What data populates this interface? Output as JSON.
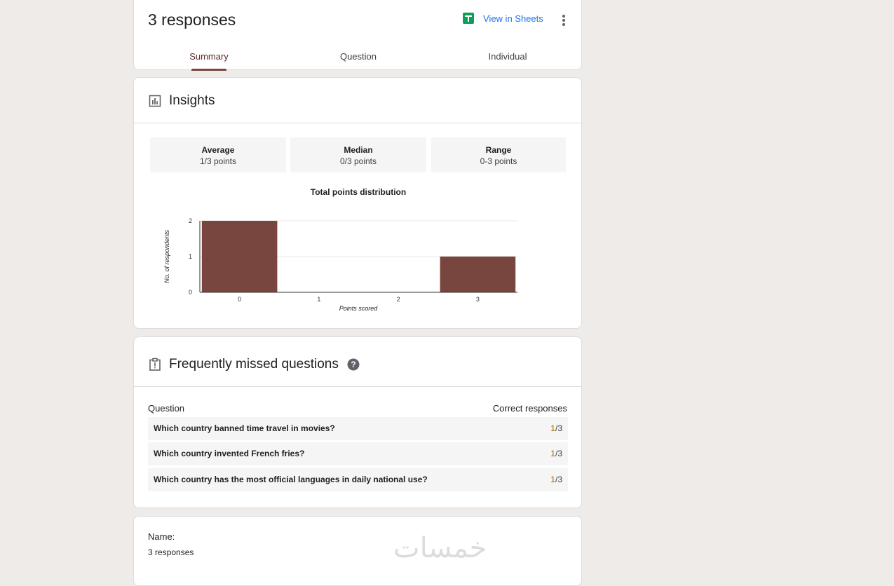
{
  "header": {
    "title": "3 responses",
    "sheets_label": "View in Sheets",
    "sheets_icon": "sheets-icon",
    "more_icon": "more-vert-icon",
    "tabs": [
      {
        "label": "Summary",
        "active": true
      },
      {
        "label": "Question",
        "active": false
      },
      {
        "label": "Individual",
        "active": false
      }
    ]
  },
  "insights": {
    "title": "Insights",
    "icon": "insights-chart-icon",
    "stats": [
      {
        "label": "Average",
        "value": "1/3 points"
      },
      {
        "label": "Median",
        "value": "0/3 points"
      },
      {
        "label": "Range",
        "value": "0-3 points"
      }
    ]
  },
  "chart_data": {
    "type": "bar",
    "title": "Total points distribution",
    "xlabel": "Points scored",
    "ylabel": "No. of respondents",
    "categories": [
      "0",
      "1",
      "2",
      "3"
    ],
    "values": [
      2,
      0,
      0,
      1
    ],
    "ylim": [
      0,
      2
    ],
    "yticks": [
      "0",
      "1",
      "2"
    ],
    "grid": true,
    "bar_color": "#79453f"
  },
  "missed": {
    "title": "Frequently missed questions",
    "icon": "clipboard-alert-icon",
    "help_icon": "help-icon",
    "col_question": "Question",
    "col_correct": "Correct responses",
    "rows": [
      {
        "question": "Which country banned time travel in movies?",
        "correct": "1",
        "total": "/3"
      },
      {
        "question": "Which country invented French fries?",
        "correct": "1",
        "total": "/3"
      },
      {
        "question": "Which country has the most official languages in daily national use?",
        "correct": "1",
        "total": "/3"
      }
    ]
  },
  "name_section": {
    "label": "Name:",
    "count": "3 responses"
  },
  "watermark": "خمسات",
  "colors": {
    "accent": "#79453f",
    "link": "#1a73e8",
    "sheets_green": "#0f9d58",
    "score_highlight": "#b06000"
  }
}
